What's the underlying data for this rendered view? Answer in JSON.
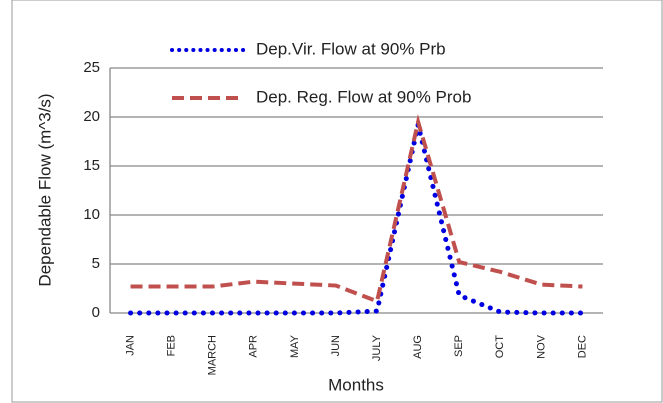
{
  "chart_data": {
    "type": "line",
    "y_label": "Dependable Flow (m^3/s)",
    "x_label": "Months",
    "categories": [
      "JAN",
      "FEB",
      "MARCH",
      "APR",
      "MAY",
      "JUN",
      "JULY",
      "AUG",
      "SEP",
      "OCT",
      "NOV",
      "DEC"
    ],
    "series": [
      {
        "name": "Dep.Vir. Flow at 90% Prb",
        "color": "#0000e0",
        "dash": "dotted",
        "values": [
          0,
          0,
          0,
          0,
          0,
          0,
          0.2,
          19.2,
          1.8,
          0.1,
          0,
          0
        ]
      },
      {
        "name": "Dep. Reg. Flow at 90% Prob",
        "color": "#c0504d",
        "dash": "dashed",
        "values": [
          2.7,
          2.7,
          2.7,
          3.2,
          3.0,
          2.8,
          1.2,
          19.5,
          5.2,
          4.2,
          2.9,
          2.7
        ]
      }
    ],
    "ylim": [
      0,
      25
    ],
    "yticks": [
      0,
      5,
      10,
      15,
      20,
      25
    ],
    "grid": true
  }
}
